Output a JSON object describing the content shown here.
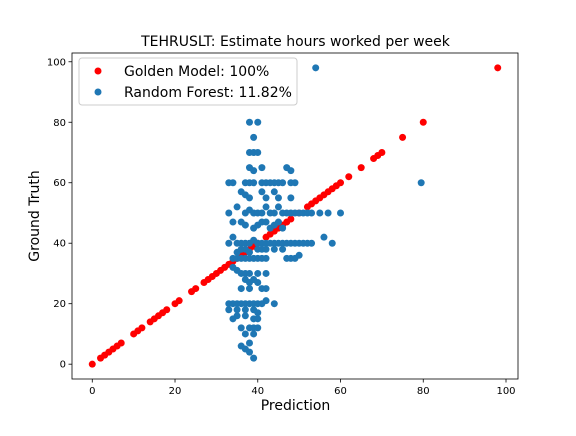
{
  "chart_data": {
    "type": "scatter",
    "title": "TEHRUSLT: Estimate hours worked per week",
    "xlabel": "Prediction",
    "ylabel": "Ground Truth",
    "xlim": [
      -4.9,
      102.9
    ],
    "ylim": [
      -4.9,
      102.9
    ],
    "xticks": [
      0,
      20,
      40,
      60,
      80,
      100
    ],
    "yticks": [
      0,
      20,
      40,
      60,
      80,
      100
    ],
    "grid": false,
    "legend_position": "upper-left",
    "series": [
      {
        "name": "Golden Model: 100%",
        "color": "#ff0000",
        "points": [
          [
            0,
            0
          ],
          [
            2,
            2
          ],
          [
            3,
            3
          ],
          [
            4,
            4
          ],
          [
            5,
            5
          ],
          [
            6,
            6
          ],
          [
            7,
            7
          ],
          [
            10,
            10
          ],
          [
            11,
            11
          ],
          [
            12,
            12
          ],
          [
            14,
            14
          ],
          [
            15,
            15
          ],
          [
            16,
            16
          ],
          [
            17,
            17
          ],
          [
            18,
            18
          ],
          [
            20,
            20
          ],
          [
            21,
            21
          ],
          [
            24,
            24
          ],
          [
            25,
            25
          ],
          [
            27,
            27
          ],
          [
            28,
            28
          ],
          [
            29,
            29
          ],
          [
            30,
            30
          ],
          [
            31,
            31
          ],
          [
            32,
            32
          ],
          [
            33,
            33
          ],
          [
            34,
            34
          ],
          [
            35,
            35
          ],
          [
            36,
            36
          ],
          [
            37,
            37
          ],
          [
            38,
            38
          ],
          [
            39,
            39
          ],
          [
            40,
            40
          ],
          [
            42,
            42
          ],
          [
            43,
            43
          ],
          [
            44,
            44
          ],
          [
            45,
            45
          ],
          [
            46,
            46
          ],
          [
            47,
            47
          ],
          [
            48,
            48
          ],
          [
            50,
            50
          ],
          [
            52,
            52
          ],
          [
            53,
            53
          ],
          [
            54,
            54
          ],
          [
            55,
            55
          ],
          [
            56,
            56
          ],
          [
            57,
            57
          ],
          [
            58,
            58
          ],
          [
            59,
            59
          ],
          [
            60,
            60
          ],
          [
            62,
            62
          ],
          [
            65,
            65
          ],
          [
            68,
            68
          ],
          [
            69,
            69
          ],
          [
            70,
            70
          ],
          [
            75,
            75
          ],
          [
            80,
            80
          ],
          [
            98,
            98
          ]
        ]
      },
      {
        "name": "Random Forest: 11.82%",
        "color": "#1f77b4",
        "points": [
          [
            54,
            98
          ],
          [
            79.5,
            60
          ],
          [
            38,
            80
          ],
          [
            40,
            80
          ],
          [
            39,
            75
          ],
          [
            38,
            70
          ],
          [
            39,
            70
          ],
          [
            40,
            70
          ],
          [
            38,
            65
          ],
          [
            39,
            64
          ],
          [
            41,
            65
          ],
          [
            47,
            65
          ],
          [
            48,
            64
          ],
          [
            33,
            60
          ],
          [
            34,
            60
          ],
          [
            37,
            60
          ],
          [
            38,
            60
          ],
          [
            39,
            60
          ],
          [
            41,
            60
          ],
          [
            42,
            60
          ],
          [
            43,
            60
          ],
          [
            44,
            60
          ],
          [
            45,
            60
          ],
          [
            46,
            60
          ],
          [
            48,
            60
          ],
          [
            49,
            60
          ],
          [
            36,
            57
          ],
          [
            37,
            56
          ],
          [
            41,
            57
          ],
          [
            44,
            57
          ],
          [
            42,
            55
          ],
          [
            45,
            55
          ],
          [
            48,
            55
          ],
          [
            38,
            55
          ],
          [
            33,
            50
          ],
          [
            35,
            52
          ],
          [
            37,
            50
          ],
          [
            38,
            51
          ],
          [
            39,
            50
          ],
          [
            40,
            50
          ],
          [
            41,
            50
          ],
          [
            42,
            52
          ],
          [
            43,
            50
          ],
          [
            44,
            50
          ],
          [
            45,
            52
          ],
          [
            46,
            50
          ],
          [
            47,
            50
          ],
          [
            48,
            50
          ],
          [
            49,
            50
          ],
          [
            50,
            50
          ],
          [
            51,
            50
          ],
          [
            52,
            50
          ],
          [
            53,
            50
          ],
          [
            55,
            50
          ],
          [
            57,
            50
          ],
          [
            60,
            50
          ],
          [
            34,
            47
          ],
          [
            36,
            47
          ],
          [
            37,
            46
          ],
          [
            39,
            45
          ],
          [
            40,
            46
          ],
          [
            41,
            47
          ],
          [
            42,
            47
          ],
          [
            43,
            45
          ],
          [
            44,
            46
          ],
          [
            45,
            47
          ],
          [
            46,
            45
          ],
          [
            33,
            40
          ],
          [
            34,
            42
          ],
          [
            35,
            40
          ],
          [
            36,
            40
          ],
          [
            37,
            40
          ],
          [
            38,
            40
          ],
          [
            39,
            41
          ],
          [
            40,
            40
          ],
          [
            41,
            40
          ],
          [
            42,
            40
          ],
          [
            43,
            40
          ],
          [
            44,
            40
          ],
          [
            45,
            40
          ],
          [
            46,
            40
          ],
          [
            47,
            40
          ],
          [
            48,
            40
          ],
          [
            49,
            40
          ],
          [
            50,
            40
          ],
          [
            51,
            40
          ],
          [
            52,
            40
          ],
          [
            53,
            40
          ],
          [
            56,
            42
          ],
          [
            58,
            40
          ],
          [
            35,
            37
          ],
          [
            36,
            38
          ],
          [
            37,
            38
          ],
          [
            38,
            37
          ],
          [
            40,
            38
          ],
          [
            41,
            38
          ],
          [
            42,
            38
          ],
          [
            44,
            38
          ],
          [
            46,
            38
          ],
          [
            34,
            35
          ],
          [
            35,
            35
          ],
          [
            36,
            35
          ],
          [
            37,
            35
          ],
          [
            38,
            35
          ],
          [
            39,
            35
          ],
          [
            40,
            35
          ],
          [
            41,
            35
          ],
          [
            42,
            35
          ],
          [
            48,
            35
          ],
          [
            49,
            35
          ],
          [
            34,
            32
          ],
          [
            35,
            31
          ],
          [
            36,
            30
          ],
          [
            37,
            30
          ],
          [
            38,
            30
          ],
          [
            40,
            30
          ],
          [
            42,
            30
          ],
          [
            50,
            36
          ],
          [
            47,
            35
          ],
          [
            37,
            28
          ],
          [
            38,
            27
          ],
          [
            39,
            28
          ],
          [
            40,
            27
          ],
          [
            41,
            25
          ],
          [
            42,
            25
          ],
          [
            36,
            25
          ],
          [
            38,
            25
          ],
          [
            33,
            20
          ],
          [
            34,
            20
          ],
          [
            35,
            20
          ],
          [
            36,
            20
          ],
          [
            37,
            20
          ],
          [
            38,
            20
          ],
          [
            39,
            20
          ],
          [
            40,
            20
          ],
          [
            41,
            20
          ],
          [
            42,
            21
          ],
          [
            44,
            20
          ],
          [
            33,
            18
          ],
          [
            35,
            18
          ],
          [
            37,
            18
          ],
          [
            39,
            18
          ],
          [
            40,
            17
          ],
          [
            34,
            15
          ],
          [
            35,
            16
          ],
          [
            37,
            16
          ],
          [
            39,
            15
          ],
          [
            40,
            15
          ],
          [
            36,
            12
          ],
          [
            38,
            12
          ],
          [
            39,
            12
          ],
          [
            40,
            12
          ],
          [
            37,
            10
          ],
          [
            39,
            10
          ],
          [
            38,
            7
          ],
          [
            36,
            6
          ],
          [
            37,
            5
          ],
          [
            38,
            4
          ],
          [
            39,
            2
          ]
        ]
      }
    ]
  }
}
